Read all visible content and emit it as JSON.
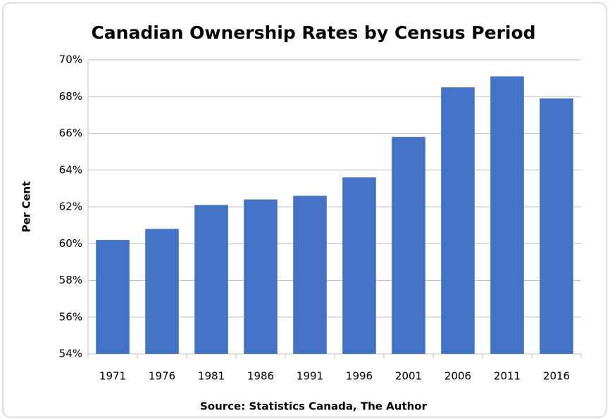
{
  "chart_data": {
    "type": "bar",
    "title": "Canadian Ownership Rates by Census Period",
    "y_label": "Per Cent",
    "source": "Source:  Statistics Canada, The Author",
    "categories": [
      "1971",
      "1976",
      "1981",
      "1986",
      "1991",
      "1996",
      "2001",
      "2006",
      "2011",
      "2016"
    ],
    "values": [
      60.2,
      60.8,
      62.1,
      62.4,
      62.6,
      63.6,
      65.8,
      68.5,
      69.1,
      67.9
    ],
    "color": "#4472c4",
    "ylim": [
      54,
      70
    ],
    "yticks": [
      {
        "value": 54,
        "label": "54%"
      },
      {
        "value": 56,
        "label": "56%"
      },
      {
        "value": 58,
        "label": "58%"
      },
      {
        "value": 60,
        "label": "60%"
      },
      {
        "value": 62,
        "label": "62%"
      },
      {
        "value": 64,
        "label": "64%"
      },
      {
        "value": 66,
        "label": "66%"
      },
      {
        "value": 68,
        "label": "68%"
      },
      {
        "value": 70,
        "label": "70%"
      }
    ],
    "grid": true
  }
}
